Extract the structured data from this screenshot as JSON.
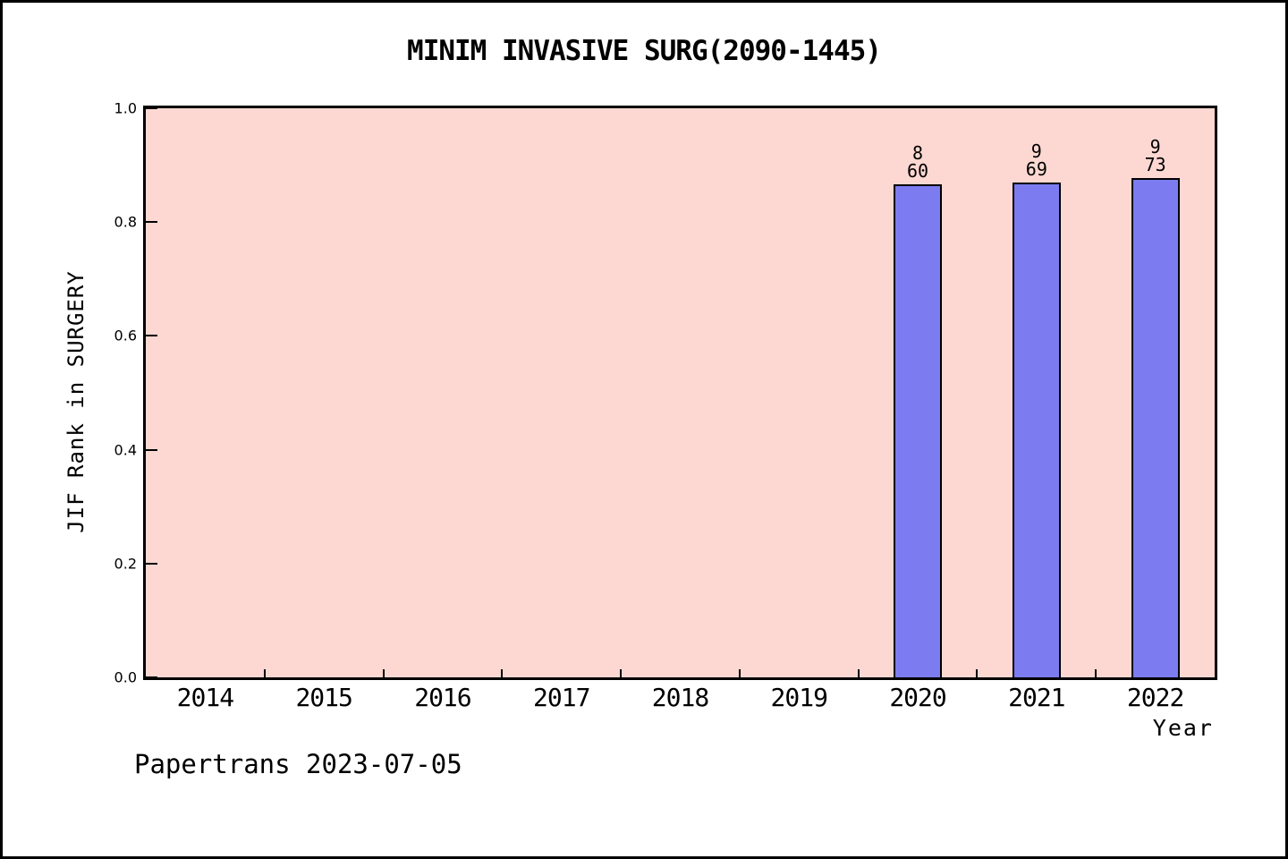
{
  "chart_data": {
    "type": "bar",
    "title": "MINIM INVASIVE SURG(2090-1445)",
    "xlabel": "Year",
    "ylabel": "JIF Rank in SURGERY",
    "categories": [
      "2014",
      "2015",
      "2016",
      "2017",
      "2018",
      "2019",
      "2020",
      "2021",
      "2022"
    ],
    "xlim": [
      2013.5,
      2022.5
    ],
    "ylim": [
      0.0,
      1.0
    ],
    "y_tick_labels": [
      "0.0",
      "0.2",
      "0.4",
      "0.6",
      "0.8",
      "1.0"
    ],
    "y_tick_values": [
      0.0,
      0.2,
      0.4,
      0.6,
      0.8,
      1.0
    ],
    "x_minor_tick_positions": [
      2014.5,
      2015.5,
      2016.5,
      2017.5,
      2018.5,
      2019.5,
      2020.5,
      2021.5
    ],
    "grid": false,
    "legend": null,
    "bars": [
      {
        "year": 2020,
        "rank_label": "8",
        "total_label": "60",
        "value": 0.867
      },
      {
        "year": 2021,
        "rank_label": "9",
        "total_label": "69",
        "value": 0.87
      },
      {
        "year": 2022,
        "rank_label": "9",
        "total_label": "73",
        "value": 0.877
      }
    ],
    "colors": {
      "bar_fill": "#7c7cf0",
      "bar_border": "#000000",
      "plot_background": "#fdd8d2",
      "page_background": "#ffffff",
      "text": "#000000"
    }
  },
  "footer": "Papertrans 2023-07-05"
}
